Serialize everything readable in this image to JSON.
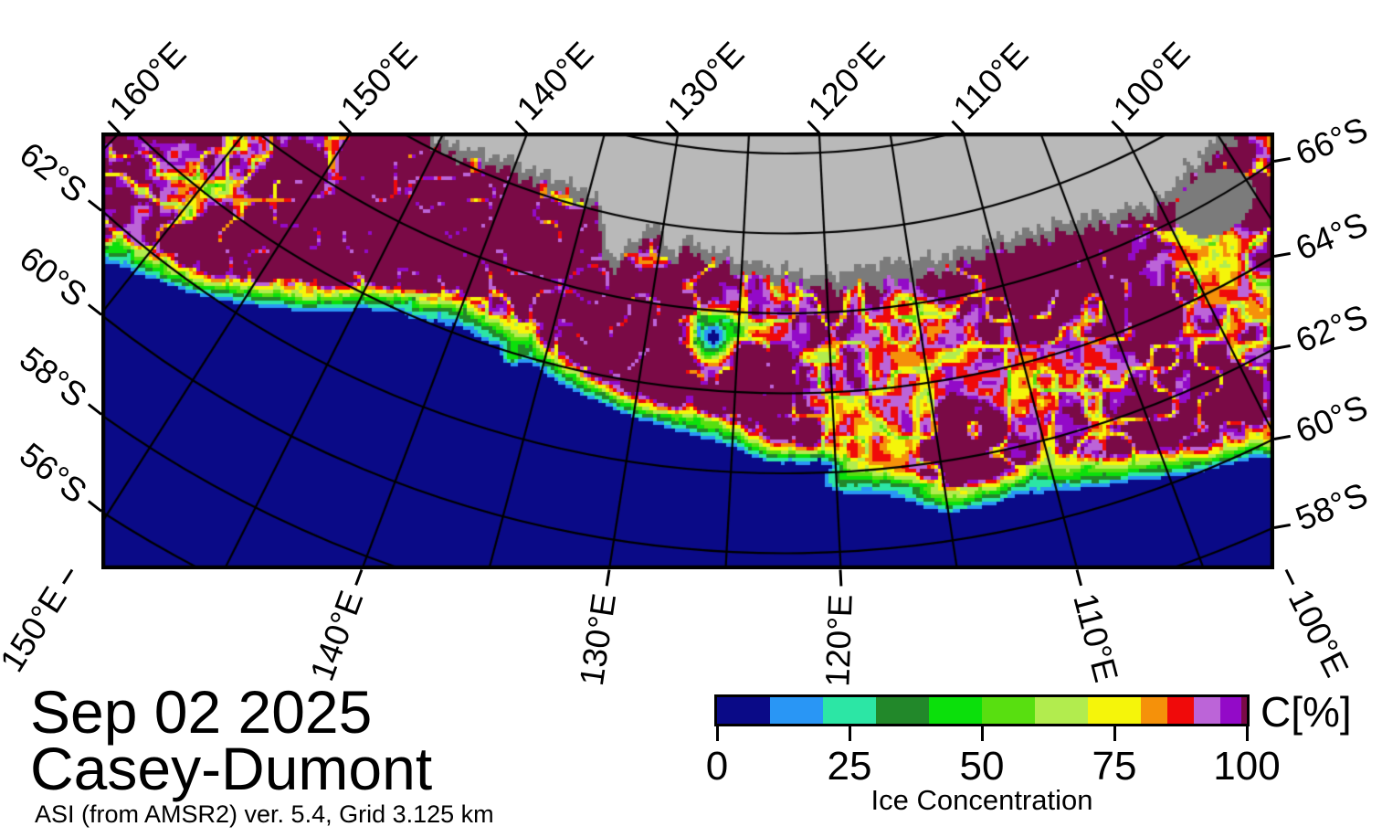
{
  "titles": {
    "date": "Sep 02 2025",
    "region": "Casey-Dumont",
    "source": "ASI (from AMSR2) ver. 5.4,  Grid 3.125 km"
  },
  "colorbar": {
    "unit_label": "C[%]",
    "axis_label": "Ice Concentration",
    "tick_labels": [
      "0",
      "25",
      "50",
      "75",
      "100"
    ],
    "tick_values": [
      0,
      25,
      50,
      75,
      100
    ],
    "bin_edges": [
      0,
      10,
      20,
      30,
      40,
      50,
      60,
      70,
      80,
      85,
      90,
      95,
      99,
      100
    ],
    "bin_colors": [
      "#0a0a87",
      "#2996f5",
      "#2ce6a5",
      "#22882a",
      "#0be00b",
      "#58df10",
      "#b2ec4e",
      "#f5f50a",
      "#f5910a",
      "#f00a0a",
      "#bc64d8",
      "#930ac8",
      "#7a0a46"
    ]
  },
  "map_colors": {
    "ocean": "#0a0a87",
    "land": "#b9b9b9",
    "coast": "#7b7b7b",
    "gridline": "#000000",
    "frame": "#000000"
  },
  "axes": {
    "top": [
      {
        "label": "160°E",
        "lon": 160
      },
      {
        "label": "150°E",
        "lon": 150
      },
      {
        "label": "140°E",
        "lon": 140
      },
      {
        "label": "130°E",
        "lon": 130
      },
      {
        "label": "120°E",
        "lon": 120
      },
      {
        "label": "110°E",
        "lon": 110
      },
      {
        "label": "100°E",
        "lon": 100
      }
    ],
    "bottom": [
      {
        "label": "150°E",
        "lon": 150
      },
      {
        "label": "140°E",
        "lon": 140
      },
      {
        "label": "130°E",
        "lon": 130
      },
      {
        "label": "120°E",
        "lon": 120
      },
      {
        "label": "110°E",
        "lon": 110
      },
      {
        "label": "100°E",
        "lon": 100
      }
    ],
    "left": [
      {
        "label": "62°S",
        "lat": 62
      },
      {
        "label": "60°S",
        "lat": 60
      },
      {
        "label": "58°S",
        "lat": 58
      },
      {
        "label": "56°S",
        "lat": 56
      }
    ],
    "right": [
      {
        "label": "66°S",
        "lat": 66
      },
      {
        "label": "64°S",
        "lat": 64
      },
      {
        "label": "62°S",
        "lat": 62
      },
      {
        "label": "60°S",
        "lat": 60
      },
      {
        "label": "58°S",
        "lat": 58
      }
    ]
  }
}
